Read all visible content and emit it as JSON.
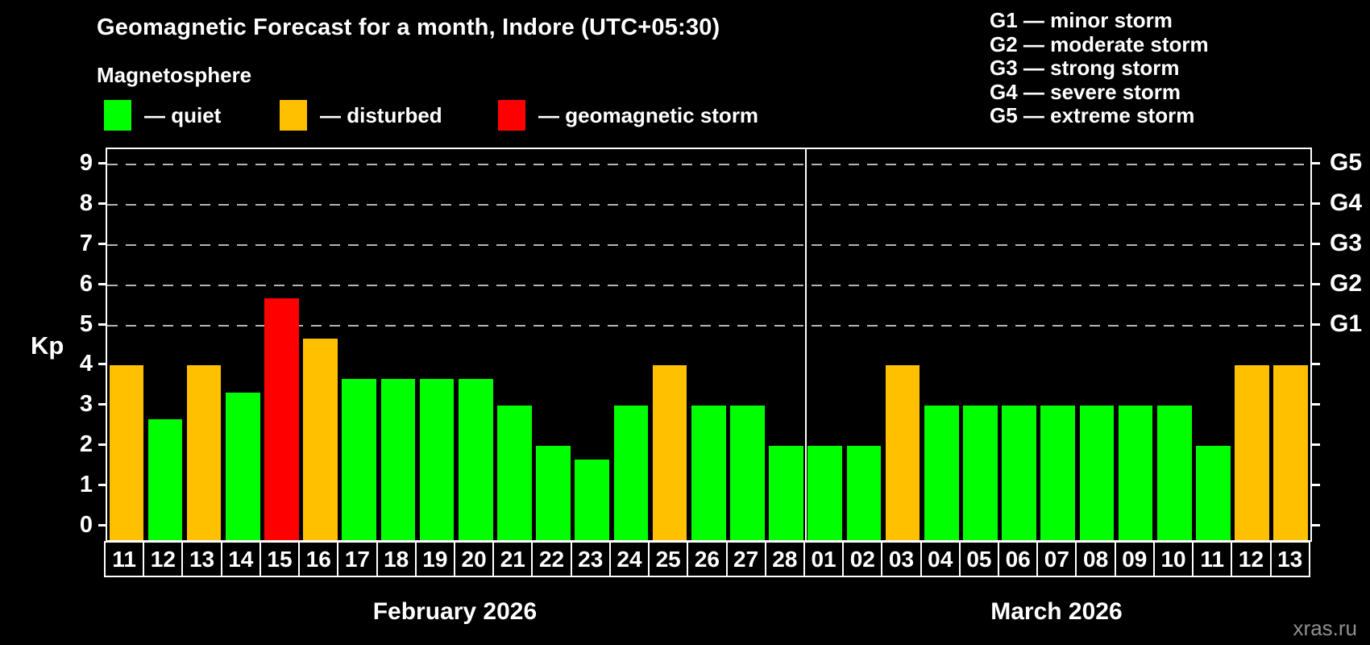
{
  "header": {
    "title": "Geomagnetic Forecast for a month, Indore (UTC+05:30)",
    "subtitle": "Magnetosphere"
  },
  "legend": {
    "items": [
      {
        "state": "quiet",
        "label": "— quiet"
      },
      {
        "state": "disturbed",
        "label": "— disturbed"
      },
      {
        "state": "storm",
        "label": "— geomagnetic storm"
      }
    ]
  },
  "g_legend": {
    "items": [
      "G1 — minor storm",
      "G2 — moderate storm",
      "G3 — strong storm",
      "G4 — severe storm",
      "G5 — extreme storm"
    ]
  },
  "watermark": "xras.ru",
  "chart_data": {
    "type": "bar",
    "title": "Geomagnetic Forecast for a month, Indore (UTC+05:30)",
    "ylabel": "Kp",
    "ylim": [
      0,
      9
    ],
    "yticks": [
      0,
      1,
      2,
      3,
      4,
      5,
      6,
      7,
      8,
      9
    ],
    "gridlines_at": [
      5,
      6,
      7,
      8,
      9
    ],
    "grid_style": "dashed horizontal reference lines at storm levels only",
    "legend_position": "top-left",
    "colors": {
      "quiet": "#00ff00",
      "disturbed": "#ffc000",
      "storm": "#ff0000"
    },
    "right_axis_labels": [
      {
        "label": "G1",
        "kp": 5
      },
      {
        "label": "G2",
        "kp": 6
      },
      {
        "label": "G3",
        "kp": 7
      },
      {
        "label": "G4",
        "kp": 8
      },
      {
        "label": "G5",
        "kp": 9
      }
    ],
    "months": [
      {
        "label": "February 2026",
        "days": [
          {
            "day": "11",
            "kp": 4.0,
            "state": "disturbed"
          },
          {
            "day": "12",
            "kp": 2.67,
            "state": "quiet"
          },
          {
            "day": "13",
            "kp": 4.0,
            "state": "disturbed"
          },
          {
            "day": "14",
            "kp": 3.33,
            "state": "quiet"
          },
          {
            "day": "15",
            "kp": 5.67,
            "state": "storm"
          },
          {
            "day": "16",
            "kp": 4.67,
            "state": "disturbed"
          },
          {
            "day": "17",
            "kp": 3.67,
            "state": "quiet"
          },
          {
            "day": "18",
            "kp": 3.67,
            "state": "quiet"
          },
          {
            "day": "19",
            "kp": 3.67,
            "state": "quiet"
          },
          {
            "day": "20",
            "kp": 3.67,
            "state": "quiet"
          },
          {
            "day": "21",
            "kp": 3.0,
            "state": "quiet"
          },
          {
            "day": "22",
            "kp": 2.0,
            "state": "quiet"
          },
          {
            "day": "23",
            "kp": 1.67,
            "state": "quiet"
          },
          {
            "day": "24",
            "kp": 3.0,
            "state": "quiet"
          },
          {
            "day": "25",
            "kp": 4.0,
            "state": "disturbed"
          },
          {
            "day": "26",
            "kp": 3.0,
            "state": "quiet"
          },
          {
            "day": "27",
            "kp": 3.0,
            "state": "quiet"
          },
          {
            "day": "28",
            "kp": 2.0,
            "state": "quiet"
          }
        ]
      },
      {
        "label": "March 2026",
        "days": [
          {
            "day": "01",
            "kp": 2.0,
            "state": "quiet"
          },
          {
            "day": "02",
            "kp": 2.0,
            "state": "quiet"
          },
          {
            "day": "03",
            "kp": 4.0,
            "state": "disturbed"
          },
          {
            "day": "04",
            "kp": 3.0,
            "state": "quiet"
          },
          {
            "day": "05",
            "kp": 3.0,
            "state": "quiet"
          },
          {
            "day": "06",
            "kp": 3.0,
            "state": "quiet"
          },
          {
            "day": "07",
            "kp": 3.0,
            "state": "quiet"
          },
          {
            "day": "08",
            "kp": 3.0,
            "state": "quiet"
          },
          {
            "day": "09",
            "kp": 3.0,
            "state": "quiet"
          },
          {
            "day": "10",
            "kp": 3.0,
            "state": "quiet"
          },
          {
            "day": "11",
            "kp": 2.0,
            "state": "quiet"
          },
          {
            "day": "12",
            "kp": 4.0,
            "state": "disturbed"
          },
          {
            "day": "13",
            "kp": 4.0,
            "state": "disturbed"
          }
        ]
      }
    ]
  }
}
